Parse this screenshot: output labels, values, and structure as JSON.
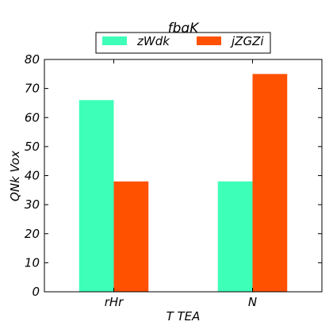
{
  "chart_data": {
    "type": "bar",
    "title": "fbqK",
    "xlabel": "T  TEA",
    "ylabel": "QNk Vox",
    "categories": [
      "rHr",
      "N"
    ],
    "series": [
      {
        "name": "zWdk",
        "values": [
          66,
          38
        ],
        "color": "#3dffb8"
      },
      {
        "name": "jZGZi",
        "values": [
          38,
          75
        ],
        "color": "#ff5100"
      }
    ],
    "ylim": [
      0,
      80
    ],
    "yticks": [
      "0",
      "10",
      "20",
      "30",
      "40",
      "50",
      "60",
      "70",
      "80"
    ],
    "grid": false,
    "legend_position": "top-center"
  }
}
